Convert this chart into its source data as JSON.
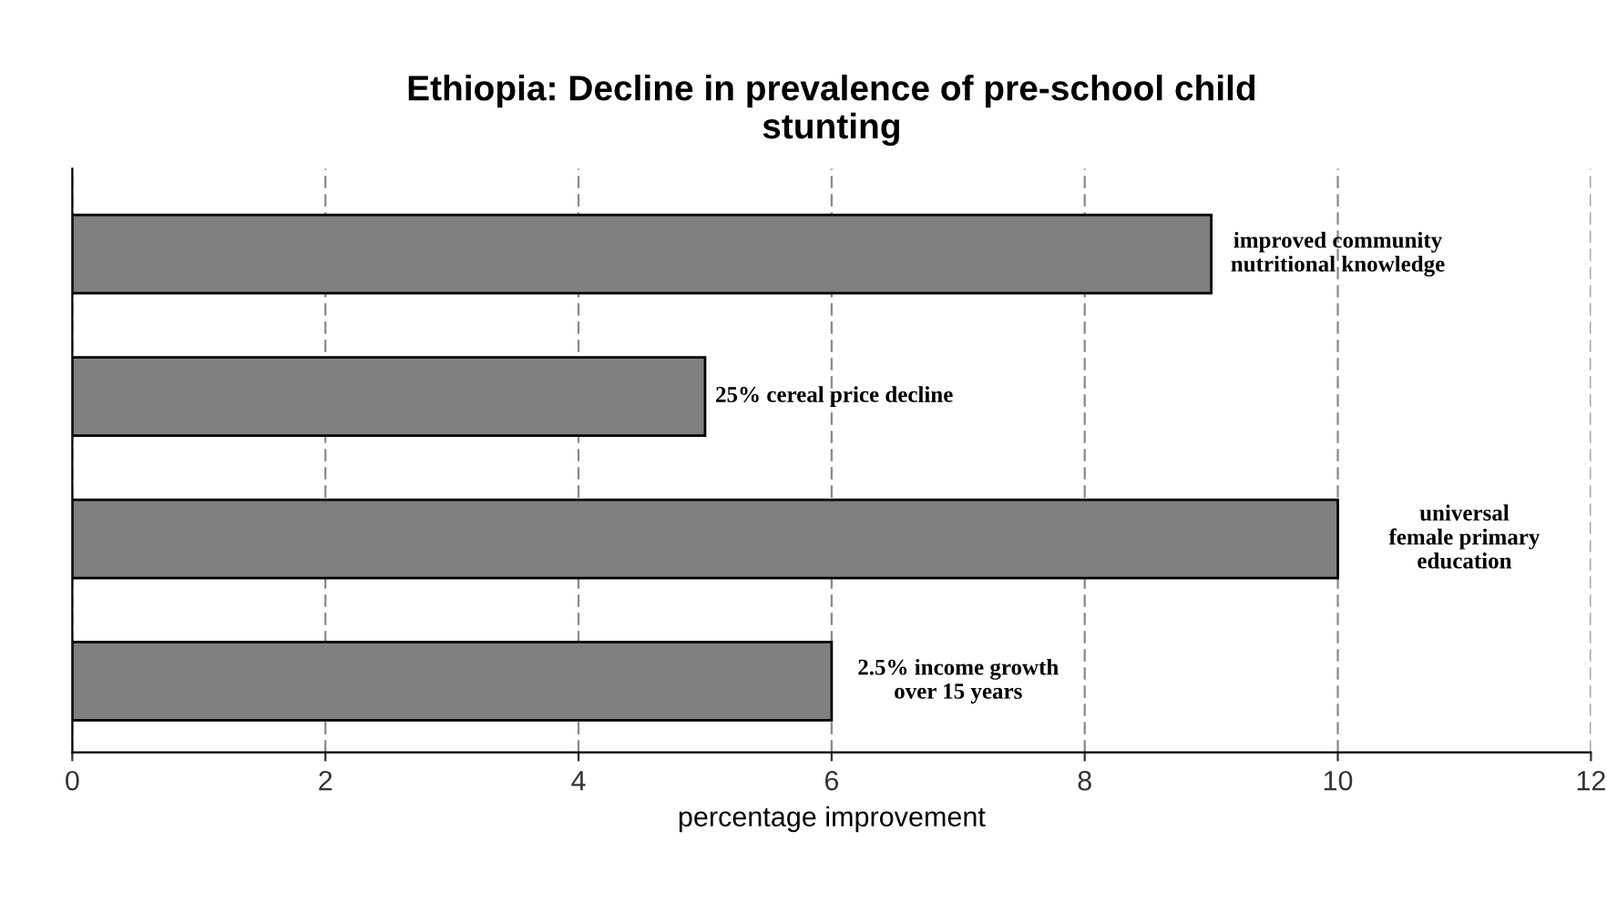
{
  "chart_data": {
    "type": "bar",
    "orientation": "horizontal",
    "title": "Ethiopia: Decline in prevalence of pre-school child\nstunting",
    "xlabel": "percentage improvement",
    "categories": [
      "improved community\nnutritional knowledge",
      "25% cereal price decline",
      "universal\nfemale primary\neducation",
      "2.5% income growth\nover 15 years"
    ],
    "values": [
      9,
      5,
      10,
      6
    ],
    "color": "#808080",
    "xlim": [
      0,
      12
    ],
    "xticks": [
      0,
      2,
      4,
      6,
      8,
      10,
      12
    ],
    "grid": "x",
    "line_style": "dashed"
  }
}
